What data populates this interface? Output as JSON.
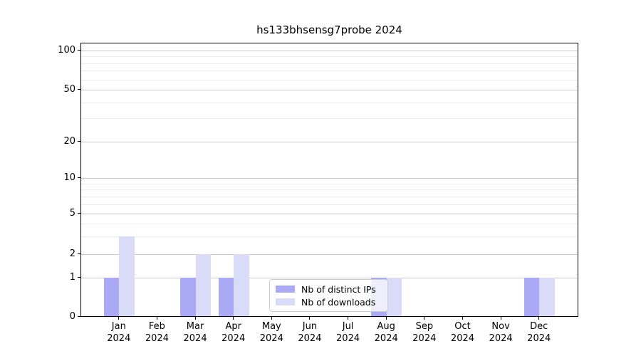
{
  "figure": {
    "background": "#ffffff"
  },
  "chart_data": {
    "type": "bar",
    "title": "hs133bhsensg7probe 2024",
    "categories": [
      "Jan",
      "Feb",
      "Mar",
      "Apr",
      "May",
      "Jun",
      "Jul",
      "Aug",
      "Sep",
      "Oct",
      "Nov",
      "Dec"
    ],
    "year_label": "2024",
    "series": [
      {
        "name": "Nb of distinct IPs",
        "color": "#a9a9f5",
        "values": [
          1,
          0,
          1,
          1,
          0,
          0,
          0,
          1,
          0,
          0,
          0,
          1
        ]
      },
      {
        "name": "Nb of downloads",
        "color": "#dadaf9",
        "values": [
          3,
          0,
          2,
          2,
          0,
          0,
          0,
          1,
          0,
          0,
          0,
          1
        ]
      }
    ],
    "yticks": [
      0,
      1,
      2,
      5,
      10,
      20,
      50,
      100
    ],
    "ylim": [
      0,
      120
    ],
    "yscale": "log-like (0,1,2,5,10,20,50,100)",
    "grid": true,
    "legend_position": "lower center",
    "colors": {
      "major_grid": "#c9c9c9",
      "minor_grid": "#ececec",
      "axis": "#000000"
    }
  }
}
